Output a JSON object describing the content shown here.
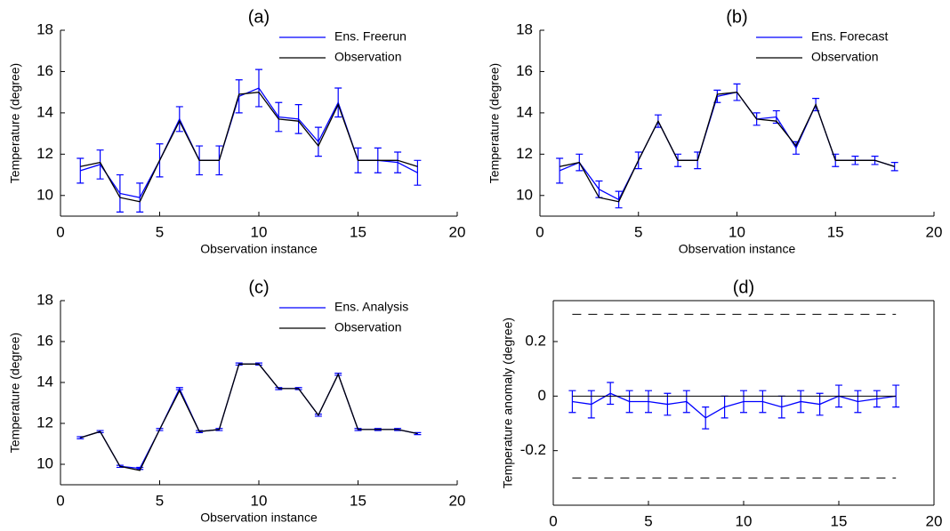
{
  "chart_data": [
    {
      "type": "line",
      "title": "(a)",
      "xlabel": "Observation instance",
      "ylabel": "Temperature (degree)",
      "x": [
        1,
        2,
        3,
        4,
        5,
        6,
        7,
        8,
        9,
        10,
        11,
        12,
        13,
        14,
        15,
        16,
        17,
        18
      ],
      "series": [
        {
          "name": "Ens. Freerun",
          "color": "#0000ff",
          "values": [
            11.2,
            11.5,
            10.1,
            9.9,
            11.7,
            13.7,
            11.7,
            11.7,
            14.8,
            15.2,
            13.8,
            13.7,
            12.6,
            14.5,
            11.7,
            11.7,
            11.6,
            11.1
          ],
          "errors": [
            0.6,
            0.7,
            0.9,
            0.7,
            0.8,
            0.6,
            0.7,
            0.7,
            0.8,
            0.9,
            0.7,
            0.7,
            0.7,
            0.7,
            0.6,
            0.6,
            0.5,
            0.6
          ]
        },
        {
          "name": "Observation",
          "color": "#000000",
          "values": [
            11.4,
            11.6,
            9.9,
            9.7,
            11.7,
            13.6,
            11.7,
            11.7,
            14.9,
            15.0,
            13.7,
            13.6,
            12.4,
            14.4,
            11.7,
            11.7,
            11.7,
            11.4
          ]
        }
      ],
      "xlim": [
        0,
        20
      ],
      "xticks": [
        0,
        5,
        10,
        15,
        20
      ],
      "ylim": [
        9,
        18
      ],
      "yticks": [
        10,
        12,
        14,
        16,
        18
      ],
      "legend": "upper right",
      "box": false
    },
    {
      "type": "line",
      "title": "(b)",
      "xlabel": "Observation instance",
      "ylabel": "Temperature (degree)",
      "x": [
        1,
        2,
        3,
        4,
        5,
        6,
        7,
        8,
        9,
        10,
        11,
        12,
        13,
        14,
        15,
        16,
        17,
        18
      ],
      "series": [
        {
          "name": "Ens. Forecast",
          "color": "#0000ff",
          "values": [
            11.2,
            11.6,
            10.3,
            9.8,
            11.7,
            13.6,
            11.7,
            11.7,
            14.8,
            15.0,
            13.7,
            13.8,
            12.3,
            14.4,
            11.7,
            11.7,
            11.7,
            11.4
          ],
          "errors": [
            0.6,
            0.4,
            0.4,
            0.4,
            0.4,
            0.3,
            0.3,
            0.4,
            0.3,
            0.4,
            0.3,
            0.3,
            0.3,
            0.3,
            0.3,
            0.2,
            0.2,
            0.2
          ]
        },
        {
          "name": "Observation",
          "color": "#000000",
          "values": [
            11.4,
            11.6,
            9.9,
            9.7,
            11.7,
            13.6,
            11.7,
            11.7,
            14.9,
            15.0,
            13.7,
            13.6,
            12.4,
            14.4,
            11.7,
            11.7,
            11.7,
            11.4
          ]
        }
      ],
      "xlim": [
        0,
        20
      ],
      "xticks": [
        0,
        5,
        10,
        15,
        20
      ],
      "ylim": [
        9,
        18
      ],
      "yticks": [
        10,
        12,
        14,
        16,
        18
      ],
      "legend": "upper right",
      "box": false
    },
    {
      "type": "line",
      "title": "(c)",
      "xlabel": "Observation instance",
      "ylabel": "Temperature (degree)",
      "x": [
        1,
        2,
        3,
        4,
        5,
        6,
        7,
        8,
        9,
        10,
        11,
        12,
        13,
        14,
        15,
        16,
        17,
        18
      ],
      "series": [
        {
          "name": "Ens. Analysis",
          "color": "#0000ff",
          "values": [
            11.3,
            11.6,
            9.9,
            9.8,
            11.7,
            13.7,
            11.6,
            11.7,
            14.9,
            14.9,
            13.7,
            13.7,
            12.4,
            14.4,
            11.7,
            11.7,
            11.7,
            11.5
          ],
          "errors": [
            0.05,
            0.05,
            0.05,
            0.05,
            0.05,
            0.05,
            0.05,
            0.05,
            0.05,
            0.05,
            0.05,
            0.05,
            0.05,
            0.05,
            0.05,
            0.05,
            0.05,
            0.05
          ]
        },
        {
          "name": "Observation",
          "color": "#000000",
          "values": [
            11.3,
            11.6,
            9.9,
            9.7,
            11.7,
            13.6,
            11.6,
            11.7,
            14.9,
            14.9,
            13.7,
            13.7,
            12.4,
            14.4,
            11.7,
            11.7,
            11.7,
            11.5
          ]
        }
      ],
      "xlim": [
        0,
        20
      ],
      "xticks": [
        0,
        5,
        10,
        15,
        20
      ],
      "ylim": [
        9,
        18
      ],
      "yticks": [
        10,
        12,
        14,
        16,
        18
      ],
      "legend": "upper right",
      "box": false
    },
    {
      "type": "line",
      "title": "(d)",
      "xlabel": "Observation instance",
      "ylabel": "Temperature anomaly (degree)",
      "x": [
        1,
        2,
        3,
        4,
        5,
        6,
        7,
        8,
        9,
        10,
        11,
        12,
        13,
        14,
        15,
        16,
        17,
        18
      ],
      "series": [
        {
          "color": "#0000ff",
          "values": [
            -0.02,
            -0.03,
            0.01,
            -0.02,
            -0.02,
            -0.03,
            -0.02,
            -0.08,
            -0.04,
            -0.02,
            -0.02,
            -0.04,
            -0.02,
            -0.03,
            0,
            -0.02,
            -0.01,
            0
          ],
          "errors": [
            0.04,
            0.05,
            0.04,
            0.04,
            0.04,
            0.04,
            0.04,
            0.04,
            0.04,
            0.04,
            0.04,
            0.04,
            0.04,
            0.04,
            0.04,
            0.04,
            0.03,
            0.04
          ]
        }
      ],
      "reference_lines": [
        {
          "value": 0.3,
          "dashed": true
        },
        {
          "value": 0,
          "dashed": false
        },
        {
          "value": -0.3,
          "dashed": true
        }
      ],
      "xlim": [
        0,
        20
      ],
      "xticks": [
        0,
        5,
        10,
        15,
        20
      ],
      "ylim": [
        -0.4,
        0.35
      ],
      "yticks": [
        -0.2,
        0,
        0.2
      ],
      "box": true
    }
  ]
}
